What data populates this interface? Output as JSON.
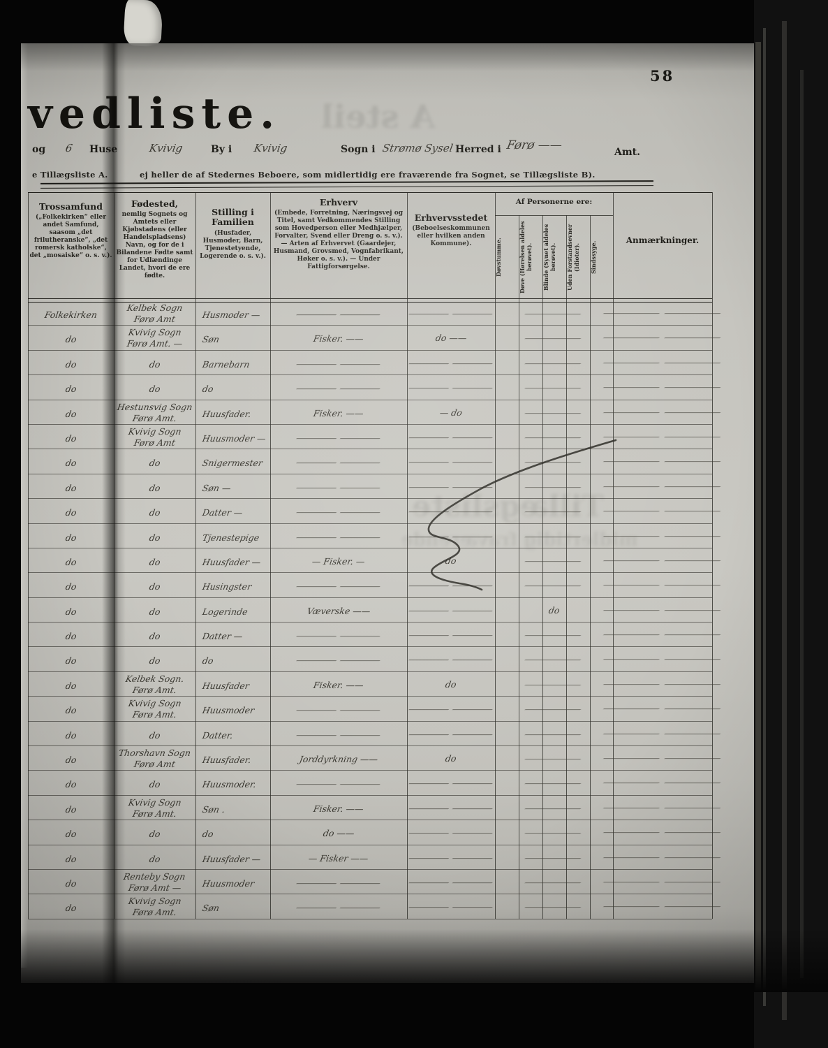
{
  "page": {
    "number": "58"
  },
  "title": {
    "main": "vedliste."
  },
  "form": {
    "og": "og",
    "huse_count": "6",
    "huse": "Huse",
    "place1": "Kvivig",
    "by_label": "By i",
    "place2": "Kvivig",
    "sogn_label": "Sogn i",
    "sogn_value": "Strømø Sysel",
    "herred_label": "Herred i",
    "herred_value": "Førø ——",
    "amt_label": "Amt."
  },
  "note": {
    "left": "e Tillægsliste A.",
    "right": "ej heller de af Stedernes Beboere, som midlertidig ere fraværende fra Sognet, se Tillægsliste B)."
  },
  "ghosts": {
    "top": "A steil",
    "mid1": "Tillægsliste",
    "mid2": "midlertidig fraværende"
  },
  "table": {
    "headers": {
      "trossamfund": {
        "title": "Trossamfund",
        "sub": "(„Folkekirken“ eller andet Samfund, saasom „det frilutheranske“, „det romersk katholske“, det „mosaiske“ o. s. v.)."
      },
      "fodested": {
        "title": "Fødested,",
        "sub": "nemlig Sognets og Amtets eller Kjøbstadens (eller Handelspladsens) Navn, og for de i Bilandene Fødte samt for Udlændinge Landet, hvori de ere fødte."
      },
      "stilling": {
        "title": "Stilling i Familien",
        "sub": "(Husfader, Husmoder, Barn, Tjenestetyende, Logerende o. s. v.)."
      },
      "erhverv": {
        "title": "Erhverv",
        "sub": "(Embede, Forretning, Næringsvej og Titel, samt Vedkommendes Stilling som Hovedperson eller Medhjælper, Forvalter, Svend eller Dreng o. s. v.). — Arten af Erhvervet (Gaardejer, Husmand, Grovsmed, Vognfabrikant, Høker o. s. v.). — Under Fattigforsørgelse."
      },
      "erhvervsstedet": {
        "title": "Erhvervsstedet",
        "sub": "(Beboelseskommunen eller hvilken anden Kommune)."
      },
      "af_personerne": {
        "title": "Af Personerne ere:",
        "cols": [
          "Døvstumme.",
          "Døve (Hørelsen aldeles berøvet).",
          "Blinde (Synet aldeles berøvet).",
          "Uden Forstandsevner (Idioter).",
          "Sindssyge."
        ]
      },
      "anmaerkninger": {
        "title": "Anmærkninger."
      }
    },
    "rows": [
      {
        "tros": "Folkekirken",
        "fod1": "Kelbek Sogn",
        "fod2": "Førø Amt",
        "stil": "Husmoder —",
        "erh": "——",
        "sted": "——",
        "box": "—",
        "anm": "——"
      },
      {
        "tros": "do",
        "fod1": "Kvivig Sogn",
        "fod2": "Førø Amt. —",
        "stil": "Søn",
        "erh": "Fisker. ——",
        "sted": "do ——",
        "box": "—",
        "anm": "——"
      },
      {
        "tros": "do",
        "fod1": "do",
        "fod2": "",
        "stil": "Barnebarn",
        "erh": "——",
        "sted": "——",
        "box": "—",
        "anm": "——"
      },
      {
        "tros": "do",
        "fod1": "do",
        "fod2": "",
        "stil": "do",
        "erh": "——",
        "sted": "——",
        "box": "—",
        "anm": "——"
      },
      {
        "tros": "do",
        "fod1": "Hestunsvig Sogn",
        "fod2": "Førø Amt.",
        "stil": "Huusfader.",
        "erh": "Fisker. ——",
        "sted": "— do",
        "box": "—",
        "anm": "——"
      },
      {
        "tros": "do",
        "fod1": "Kvivig Sogn",
        "fod2": "Førø Amt",
        "stil": "Huusmoder —",
        "erh": "——",
        "sted": "——",
        "box": "—",
        "anm": "——"
      },
      {
        "tros": "do",
        "fod1": "do",
        "fod2": "",
        "stil": "Snigermester",
        "erh": "——",
        "sted": "——",
        "box": "—",
        "anm": "——"
      },
      {
        "tros": "do",
        "fod1": "do",
        "fod2": "",
        "stil": "Søn —",
        "erh": "——",
        "sted": "——",
        "box": "—",
        "anm": "——"
      },
      {
        "tros": "do",
        "fod1": "do",
        "fod2": "",
        "stil": "Datter —",
        "erh": "——",
        "sted": "——",
        "box": "—",
        "anm": "——"
      },
      {
        "tros": "do",
        "fod1": "do",
        "fod2": "",
        "stil": "Tjenestepige",
        "erh": "——",
        "sted": "——",
        "box": "—",
        "anm": "——"
      },
      {
        "tros": "do",
        "fod1": "do",
        "fod2": "",
        "stil": "Huusfader —",
        "erh": "— Fisker. —",
        "sted": "do",
        "box": "—",
        "anm": "——"
      },
      {
        "tros": "do",
        "fod1": "do",
        "fod2": "",
        "stil": "Husingster",
        "erh": "——",
        "sted": "——",
        "box": "—",
        "anm": "——"
      },
      {
        "tros": "do",
        "fod1": "do",
        "fod2": "",
        "stil": "Logerinde",
        "erh": "Væverske ——",
        "sted": "——",
        "box": "do",
        "anm": "——"
      },
      {
        "tros": "do",
        "fod1": "do",
        "fod2": "",
        "stil": "Datter —",
        "erh": "——",
        "sted": "——",
        "box": "—",
        "anm": "——"
      },
      {
        "tros": "do",
        "fod1": "do",
        "fod2": "",
        "stil": "do",
        "erh": "——",
        "sted": "——",
        "box": "—",
        "anm": "——"
      },
      {
        "tros": "do",
        "fod1": "Kelbek Sogn.",
        "fod2": "Førø Amt.",
        "stil": "Huusfader",
        "erh": "Fisker. ——",
        "sted": "do",
        "box": "—",
        "anm": "——"
      },
      {
        "tros": "do",
        "fod1": "Kvivig Sogn",
        "fod2": "Førø Amt.",
        "stil": "Huusmoder",
        "erh": "——",
        "sted": "——",
        "box": "—",
        "anm": "——"
      },
      {
        "tros": "do",
        "fod1": "do",
        "fod2": "",
        "stil": "Datter.",
        "erh": "——",
        "sted": "——",
        "box": "—",
        "anm": "——"
      },
      {
        "tros": "do",
        "fod1": "Thorshavn Sogn",
        "fod2": "Førø Amt",
        "stil": "Huusfader.",
        "erh": "Jorddyrkning ——",
        "sted": "do",
        "box": "—",
        "anm": "——"
      },
      {
        "tros": "do",
        "fod1": "do",
        "fod2": "",
        "stil": "Huusmoder.",
        "erh": "——",
        "sted": "——",
        "box": "—",
        "anm": "——"
      },
      {
        "tros": "do",
        "fod1": "Kvivig Sogn",
        "fod2": "Førø Amt.",
        "stil": "Søn .",
        "erh": "Fisker. ——",
        "sted": "——",
        "box": "—",
        "anm": "——"
      },
      {
        "tros": "do",
        "fod1": "do",
        "fod2": "",
        "stil": "do",
        "erh": "do ——",
        "sted": "——",
        "box": "—",
        "anm": "——"
      },
      {
        "tros": "do",
        "fod1": "do",
        "fod2": "",
        "stil": "Huusfader —",
        "erh": "— Fisker ——",
        "sted": "——",
        "box": "—",
        "anm": "——"
      },
      {
        "tros": "do",
        "fod1": "Renteby Sogn",
        "fod2": "Førø Amt —",
        "stil": "Huusmoder",
        "erh": "——",
        "sted": "——",
        "box": "—",
        "anm": "——"
      },
      {
        "tros": "do",
        "fod1": "Kvivig Sogn",
        "fod2": "Førø Amt.",
        "stil": "Søn",
        "erh": "——",
        "sted": "——",
        "box": "—",
        "anm": "——"
      }
    ]
  }
}
